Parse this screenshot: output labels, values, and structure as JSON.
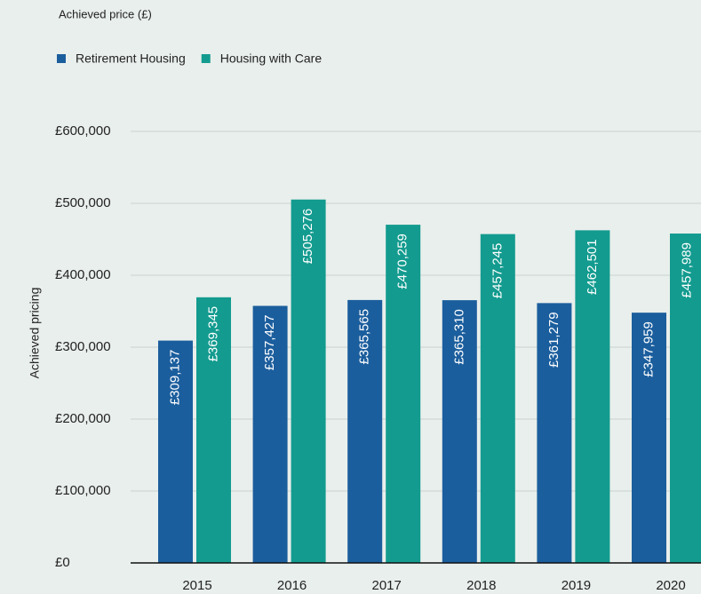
{
  "chart_data": {
    "type": "bar",
    "title": "Achieved price (£)",
    "y_label": "Achieved pricing",
    "categories": [
      "2015",
      "2016",
      "2017",
      "2018",
      "2019",
      "2020"
    ],
    "series": [
      {
        "name": "Retirement Housing",
        "color": "#1b5e9d",
        "values": [
          309137,
          357427,
          365565,
          365310,
          361279,
          347959
        ],
        "value_labels": [
          "£309,137",
          "£357,427",
          "£365,565",
          "£365,310",
          "£361,279",
          "£347,959"
        ]
      },
      {
        "name": "Housing with Care",
        "color": "#139b8f",
        "values": [
          369345,
          505276,
          470259,
          457245,
          462501,
          457989
        ],
        "value_labels": [
          "£369,345",
          "£505,276",
          "£470,259",
          "£457,245",
          "£462,501",
          "£457,989"
        ]
      }
    ],
    "ylim": [
      0,
      600000
    ],
    "yticks": [
      {
        "value": 0,
        "label": "£0"
      },
      {
        "value": 100000,
        "label": "£100,000"
      },
      {
        "value": 200000,
        "label": "£200,000"
      },
      {
        "value": 300000,
        "label": "£300,000"
      },
      {
        "value": 400000,
        "label": "£400,000"
      },
      {
        "value": 500000,
        "label": "£500,000"
      },
      {
        "value": 600000,
        "label": "£600,000"
      }
    ],
    "grid": true,
    "legend": "top-left"
  }
}
